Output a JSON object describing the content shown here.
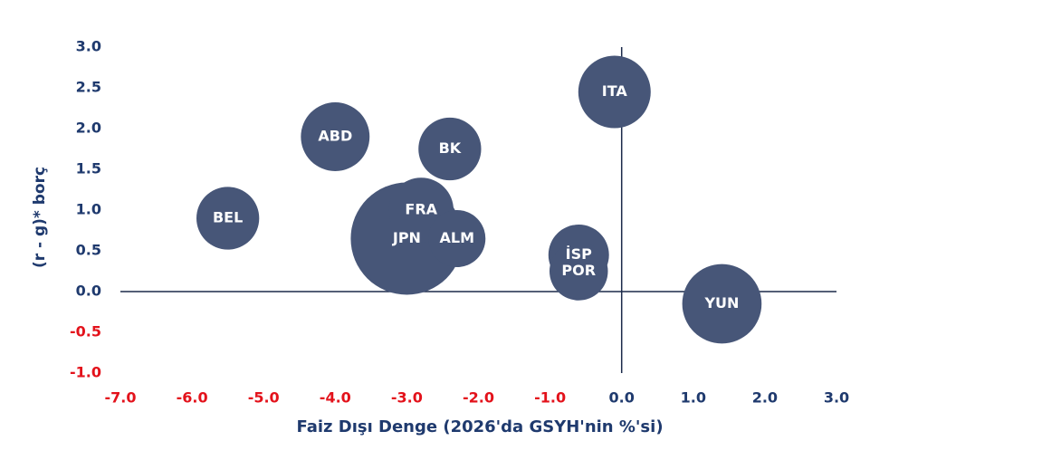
{
  "chart_data": {
    "type": "bubble",
    "x_label": "Faiz Dışı Denge (2026'da GSYH'nin %'si)",
    "y_label": "(r - g)* borç",
    "labels": [
      "JPN",
      "ITA",
      "ABD",
      "BK",
      "BEL",
      "FRA",
      "ALM",
      "İSP",
      "POR",
      "YUN"
    ],
    "x": [
      -3.0,
      -0.1,
      -4.0,
      -2.4,
      -5.5,
      -2.8,
      -2.3,
      -0.6,
      -0.6,
      1.4
    ],
    "values": [
      0.65,
      2.45,
      1.9,
      1.75,
      0.9,
      1.0,
      0.65,
      0.45,
      0.25,
      -0.15
    ],
    "sizes": [
      240,
      100,
      90,
      75,
      75,
      80,
      62,
      70,
      65,
      120
    ],
    "color": "#475678",
    "xlim": [
      -7,
      3
    ],
    "ylim": [
      -1,
      3
    ],
    "xticks": [
      {
        "value": -7,
        "label": "-7.0"
      },
      {
        "value": -6,
        "label": "-6.0"
      },
      {
        "value": -5,
        "label": "-5.0"
      },
      {
        "value": -4,
        "label": "-4.0"
      },
      {
        "value": -3,
        "label": "-3.0"
      },
      {
        "value": -2,
        "label": "-2.0"
      },
      {
        "value": -1,
        "label": "-1.0"
      },
      {
        "value": 0,
        "label": "0.0"
      },
      {
        "value": 1,
        "label": "1.0"
      },
      {
        "value": 2,
        "label": "2.0"
      },
      {
        "value": 3,
        "label": "3.0"
      }
    ],
    "yticks": [
      {
        "value": -1,
        "label": "-1.0"
      },
      {
        "value": -0.5,
        "label": "-0.5"
      },
      {
        "value": 0,
        "label": "0.0"
      },
      {
        "value": 0.5,
        "label": "0.5"
      },
      {
        "value": 1,
        "label": "1.0"
      },
      {
        "value": 1.5,
        "label": "1.5"
      },
      {
        "value": 2,
        "label": "2.0"
      },
      {
        "value": 2.5,
        "label": "2.5"
      },
      {
        "value": 3,
        "label": "3.0"
      }
    ],
    "tick_color": "#1f3a6e",
    "negative_tick_color": "#e3121b",
    "axis_color": "#1b2a4a"
  }
}
